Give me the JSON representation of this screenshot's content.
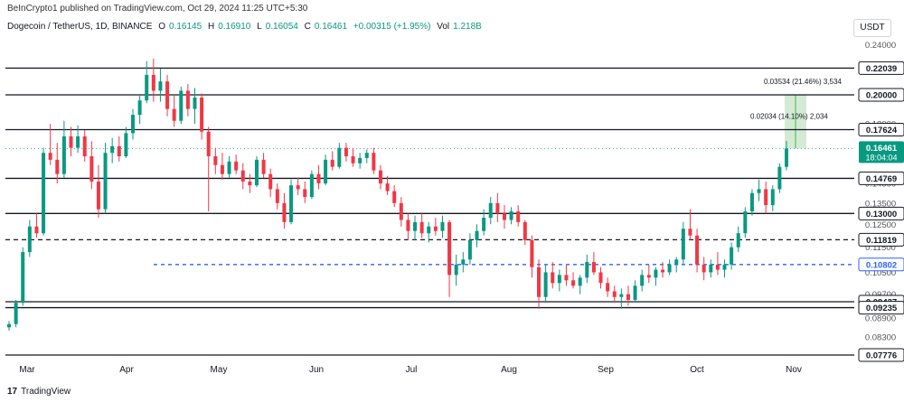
{
  "header": {
    "published_by": "BeInCrypto1 published on TradingView.com, Oct 29, 2024 11:25 UTC+5:30",
    "symbol": "Dogecoin / TetherUS, 1D, BINANCE",
    "ohlc": {
      "o_label": "O",
      "o_value": "0.16145",
      "h_label": "H",
      "h_value": "0.16910",
      "l_label": "L",
      "l_value": "0.16054",
      "c_label": "C",
      "c_value": "0.16461",
      "change": "+0.00315 (+1.95%)",
      "vol_label": "Vol",
      "vol_value": "1.218B"
    },
    "currency": "USDT"
  },
  "footer": {
    "logo_mark": "17",
    "logo_text": "TradingView"
  },
  "colors": {
    "up": "#089981",
    "down": "#f23645",
    "level_line": "#131722",
    "dashed_blue": "#2962ff",
    "projection_fill": "#c8e6c9",
    "price_label_bg": "#131722",
    "current_price_bg": "#089981",
    "current_price_line": "#089981"
  },
  "chart_data": {
    "type": "candlestick",
    "x_axis": {
      "labels": [
        "Mar",
        "Apr",
        "May",
        "Jun",
        "Jul",
        "Aug",
        "Sep",
        "Oct",
        "Nov"
      ]
    },
    "y_axis": {
      "scale": "log",
      "range": [
        0.0765,
        0.2475
      ],
      "tick_labels": [
        "0.24000",
        "0.18000",
        "0.14500",
        "0.13500",
        "0.12500",
        "0.11500",
        "0.10500",
        "0.09700",
        "0.08900",
        "0.08300"
      ]
    },
    "horizontal_levels": [
      {
        "value": 0.22039,
        "label": "0.22039",
        "style": "solid"
      },
      {
        "value": 0.2,
        "label": "0.20000",
        "style": "solid"
      },
      {
        "value": 0.17624,
        "label": "0.17624",
        "style": "solid"
      },
      {
        "value": 0.14769,
        "label": "0.14769",
        "style": "solid"
      },
      {
        "value": 0.13,
        "label": "0.13000",
        "style": "solid"
      },
      {
        "value": 0.11819,
        "label": "0.11819",
        "style": "dashed"
      },
      {
        "value": 0.10802,
        "label": "0.10802",
        "style": "dashed-blue"
      },
      {
        "value": 0.09437,
        "label": "0.09437",
        "style": "solid"
      },
      {
        "value": 0.09235,
        "label": "0.09235",
        "style": "solid"
      },
      {
        "value": 0.07776,
        "label": "0.07776",
        "style": "solid"
      }
    ],
    "current_price": {
      "value": 0.16461,
      "label": "0.16461",
      "countdown": "18:04:04"
    },
    "projection": {
      "from": 0.16461,
      "to": 0.2
    },
    "annotations": [
      {
        "text": "0.03534 (21.46%) 3,534",
        "value": 0.2
      },
      {
        "text": "0.02034 (14.10%) 2,034",
        "value": 0.17624
      }
    ],
    "series": [
      {
        "date_index": 0,
        "open": 0.086,
        "high": 0.088,
        "low": 0.085,
        "close": 0.087
      },
      {
        "date_index": 2,
        "open": 0.087,
        "high": 0.095,
        "low": 0.086,
        "close": 0.094
      },
      {
        "date_index": 4,
        "open": 0.094,
        "high": 0.115,
        "low": 0.093,
        "close": 0.113
      },
      {
        "date_index": 6,
        "open": 0.113,
        "high": 0.127,
        "low": 0.111,
        "close": 0.124
      },
      {
        "date_index": 8,
        "open": 0.124,
        "high": 0.13,
        "low": 0.119,
        "close": 0.121
      },
      {
        "date_index": 10,
        "open": 0.121,
        "high": 0.165,
        "low": 0.12,
        "close": 0.162
      },
      {
        "date_index": 12,
        "open": 0.162,
        "high": 0.18,
        "low": 0.155,
        "close": 0.158
      },
      {
        "date_index": 14,
        "open": 0.158,
        "high": 0.168,
        "low": 0.145,
        "close": 0.15
      },
      {
        "date_index": 16,
        "open": 0.15,
        "high": 0.182,
        "low": 0.148,
        "close": 0.172
      },
      {
        "date_index": 18,
        "open": 0.172,
        "high": 0.178,
        "low": 0.16,
        "close": 0.165
      },
      {
        "date_index": 20,
        "open": 0.165,
        "high": 0.179,
        "low": 0.162,
        "close": 0.172
      },
      {
        "date_index": 22,
        "open": 0.172,
        "high": 0.176,
        "low": 0.157,
        "close": 0.16
      },
      {
        "date_index": 24,
        "open": 0.16,
        "high": 0.169,
        "low": 0.142,
        "close": 0.146
      },
      {
        "date_index": 26,
        "open": 0.146,
        "high": 0.155,
        "low": 0.128,
        "close": 0.132
      },
      {
        "date_index": 28,
        "open": 0.132,
        "high": 0.168,
        "low": 0.13,
        "close": 0.162
      },
      {
        "date_index": 30,
        "open": 0.162,
        "high": 0.171,
        "low": 0.156,
        "close": 0.166
      },
      {
        "date_index": 32,
        "open": 0.166,
        "high": 0.172,
        "low": 0.157,
        "close": 0.16
      },
      {
        "date_index": 34,
        "open": 0.16,
        "high": 0.178,
        "low": 0.159,
        "close": 0.174
      },
      {
        "date_index": 36,
        "open": 0.174,
        "high": 0.19,
        "low": 0.17,
        "close": 0.186
      },
      {
        "date_index": 38,
        "open": 0.186,
        "high": 0.2,
        "low": 0.18,
        "close": 0.196
      },
      {
        "date_index": 40,
        "open": 0.196,
        "high": 0.226,
        "low": 0.194,
        "close": 0.215
      },
      {
        "date_index": 42,
        "open": 0.215,
        "high": 0.228,
        "low": 0.195,
        "close": 0.203
      },
      {
        "date_index": 44,
        "open": 0.203,
        "high": 0.22,
        "low": 0.195,
        "close": 0.21
      },
      {
        "date_index": 46,
        "open": 0.21,
        "high": 0.215,
        "low": 0.185,
        "close": 0.19
      },
      {
        "date_index": 48,
        "open": 0.19,
        "high": 0.2,
        "low": 0.178,
        "close": 0.182
      },
      {
        "date_index": 50,
        "open": 0.182,
        "high": 0.206,
        "low": 0.18,
        "close": 0.203
      },
      {
        "date_index": 52,
        "open": 0.203,
        "high": 0.208,
        "low": 0.185,
        "close": 0.19
      },
      {
        "date_index": 54,
        "open": 0.19,
        "high": 0.205,
        "low": 0.18,
        "close": 0.198
      },
      {
        "date_index": 56,
        "open": 0.198,
        "high": 0.201,
        "low": 0.17,
        "close": 0.175
      },
      {
        "date_index": 58,
        "open": 0.175,
        "high": 0.178,
        "low": 0.131,
        "close": 0.16
      },
      {
        "date_index": 60,
        "open": 0.16,
        "high": 0.165,
        "low": 0.15,
        "close": 0.155
      },
      {
        "date_index": 62,
        "open": 0.155,
        "high": 0.162,
        "low": 0.147,
        "close": 0.15
      },
      {
        "date_index": 64,
        "open": 0.15,
        "high": 0.16,
        "low": 0.148,
        "close": 0.157
      },
      {
        "date_index": 66,
        "open": 0.157,
        "high": 0.161,
        "low": 0.15,
        "close": 0.152
      },
      {
        "date_index": 68,
        "open": 0.152,
        "high": 0.156,
        "low": 0.142,
        "close": 0.146
      },
      {
        "date_index": 70,
        "open": 0.146,
        "high": 0.15,
        "low": 0.14,
        "close": 0.144
      },
      {
        "date_index": 72,
        "open": 0.144,
        "high": 0.16,
        "low": 0.143,
        "close": 0.158
      },
      {
        "date_index": 74,
        "open": 0.158,
        "high": 0.162,
        "low": 0.148,
        "close": 0.15
      },
      {
        "date_index": 76,
        "open": 0.15,
        "high": 0.153,
        "low": 0.138,
        "close": 0.142
      },
      {
        "date_index": 78,
        "open": 0.142,
        "high": 0.145,
        "low": 0.132,
        "close": 0.135
      },
      {
        "date_index": 80,
        "open": 0.135,
        "high": 0.14,
        "low": 0.123,
        "close": 0.126
      },
      {
        "date_index": 82,
        "open": 0.126,
        "high": 0.147,
        "low": 0.125,
        "close": 0.144
      },
      {
        "date_index": 84,
        "open": 0.144,
        "high": 0.148,
        "low": 0.139,
        "close": 0.142
      },
      {
        "date_index": 86,
        "open": 0.142,
        "high": 0.146,
        "low": 0.135,
        "close": 0.138
      },
      {
        "date_index": 88,
        "open": 0.138,
        "high": 0.152,
        "low": 0.137,
        "close": 0.15
      },
      {
        "date_index": 90,
        "open": 0.15,
        "high": 0.155,
        "low": 0.142,
        "close": 0.145
      },
      {
        "date_index": 92,
        "open": 0.145,
        "high": 0.161,
        "low": 0.144,
        "close": 0.158
      },
      {
        "date_index": 94,
        "open": 0.158,
        "high": 0.163,
        "low": 0.152,
        "close": 0.154
      },
      {
        "date_index": 96,
        "open": 0.154,
        "high": 0.168,
        "low": 0.153,
        "close": 0.165
      },
      {
        "date_index": 98,
        "open": 0.165,
        "high": 0.168,
        "low": 0.157,
        "close": 0.16
      },
      {
        "date_index": 100,
        "open": 0.16,
        "high": 0.165,
        "low": 0.154,
        "close": 0.156
      },
      {
        "date_index": 102,
        "open": 0.156,
        "high": 0.162,
        "low": 0.153,
        "close": 0.159
      },
      {
        "date_index": 104,
        "open": 0.159,
        "high": 0.164,
        "low": 0.156,
        "close": 0.162
      },
      {
        "date_index": 106,
        "open": 0.162,
        "high": 0.165,
        "low": 0.15,
        "close": 0.152
      },
      {
        "date_index": 108,
        "open": 0.152,
        "high": 0.155,
        "low": 0.142,
        "close": 0.145
      },
      {
        "date_index": 110,
        "open": 0.145,
        "high": 0.149,
        "low": 0.139,
        "close": 0.141
      },
      {
        "date_index": 112,
        "open": 0.141,
        "high": 0.144,
        "low": 0.133,
        "close": 0.135
      },
      {
        "date_index": 114,
        "open": 0.135,
        "high": 0.138,
        "low": 0.124,
        "close": 0.127
      },
      {
        "date_index": 116,
        "open": 0.127,
        "high": 0.13,
        "low": 0.118,
        "close": 0.122
      },
      {
        "date_index": 118,
        "open": 0.122,
        "high": 0.129,
        "low": 0.118,
        "close": 0.126
      },
      {
        "date_index": 120,
        "open": 0.126,
        "high": 0.13,
        "low": 0.119,
        "close": 0.121
      },
      {
        "date_index": 122,
        "open": 0.121,
        "high": 0.126,
        "low": 0.117,
        "close": 0.124
      },
      {
        "date_index": 124,
        "open": 0.124,
        "high": 0.128,
        "low": 0.12,
        "close": 0.122
      },
      {
        "date_index": 126,
        "open": 0.122,
        "high": 0.129,
        "low": 0.119,
        "close": 0.126
      },
      {
        "date_index": 128,
        "open": 0.126,
        "high": 0.127,
        "low": 0.096,
        "close": 0.104
      },
      {
        "date_index": 130,
        "open": 0.104,
        "high": 0.112,
        "low": 0.1,
        "close": 0.108
      },
      {
        "date_index": 132,
        "open": 0.108,
        "high": 0.113,
        "low": 0.105,
        "close": 0.11
      },
      {
        "date_index": 134,
        "open": 0.11,
        "high": 0.121,
        "low": 0.108,
        "close": 0.118
      },
      {
        "date_index": 136,
        "open": 0.118,
        "high": 0.125,
        "low": 0.115,
        "close": 0.122
      },
      {
        "date_index": 138,
        "open": 0.122,
        "high": 0.132,
        "low": 0.12,
        "close": 0.128
      },
      {
        "date_index": 140,
        "open": 0.128,
        "high": 0.138,
        "low": 0.125,
        "close": 0.135
      },
      {
        "date_index": 142,
        "open": 0.135,
        "high": 0.14,
        "low": 0.126,
        "close": 0.13
      },
      {
        "date_index": 144,
        "open": 0.13,
        "high": 0.134,
        "low": 0.123,
        "close": 0.127
      },
      {
        "date_index": 146,
        "open": 0.127,
        "high": 0.133,
        "low": 0.125,
        "close": 0.131
      },
      {
        "date_index": 148,
        "open": 0.131,
        "high": 0.134,
        "low": 0.124,
        "close": 0.126
      },
      {
        "date_index": 150,
        "open": 0.126,
        "high": 0.127,
        "low": 0.116,
        "close": 0.118
      },
      {
        "date_index": 152,
        "open": 0.118,
        "high": 0.12,
        "low": 0.103,
        "close": 0.107
      },
      {
        "date_index": 154,
        "open": 0.107,
        "high": 0.11,
        "low": 0.092,
        "close": 0.096
      },
      {
        "date_index": 156,
        "open": 0.096,
        "high": 0.108,
        "low": 0.094,
        "close": 0.105
      },
      {
        "date_index": 158,
        "open": 0.105,
        "high": 0.109,
        "low": 0.099,
        "close": 0.101
      },
      {
        "date_index": 160,
        "open": 0.101,
        "high": 0.106,
        "low": 0.098,
        "close": 0.104
      },
      {
        "date_index": 162,
        "open": 0.104,
        "high": 0.108,
        "low": 0.1,
        "close": 0.102
      },
      {
        "date_index": 164,
        "open": 0.102,
        "high": 0.105,
        "low": 0.099,
        "close": 0.1
      },
      {
        "date_index": 166,
        "open": 0.1,
        "high": 0.104,
        "low": 0.097,
        "close": 0.103
      },
      {
        "date_index": 168,
        "open": 0.103,
        "high": 0.112,
        "low": 0.101,
        "close": 0.109
      },
      {
        "date_index": 170,
        "open": 0.109,
        "high": 0.113,
        "low": 0.104,
        "close": 0.105
      },
      {
        "date_index": 172,
        "open": 0.105,
        "high": 0.107,
        "low": 0.099,
        "close": 0.101
      },
      {
        "date_index": 174,
        "open": 0.101,
        "high": 0.103,
        "low": 0.096,
        "close": 0.098
      },
      {
        "date_index": 176,
        "open": 0.098,
        "high": 0.1,
        "low": 0.094,
        "close": 0.096
      },
      {
        "date_index": 178,
        "open": 0.096,
        "high": 0.099,
        "low": 0.092,
        "close": 0.097
      },
      {
        "date_index": 180,
        "open": 0.097,
        "high": 0.1,
        "low": 0.093,
        "close": 0.095
      },
      {
        "date_index": 182,
        "open": 0.095,
        "high": 0.102,
        "low": 0.094,
        "close": 0.1
      },
      {
        "date_index": 184,
        "open": 0.1,
        "high": 0.106,
        "low": 0.098,
        "close": 0.104
      },
      {
        "date_index": 186,
        "open": 0.104,
        "high": 0.108,
        "low": 0.101,
        "close": 0.103
      },
      {
        "date_index": 188,
        "open": 0.103,
        "high": 0.107,
        "low": 0.1,
        "close": 0.106
      },
      {
        "date_index": 190,
        "open": 0.106,
        "high": 0.109,
        "low": 0.103,
        "close": 0.105
      },
      {
        "date_index": 192,
        "open": 0.105,
        "high": 0.11,
        "low": 0.104,
        "close": 0.108
      },
      {
        "date_index": 194,
        "open": 0.108,
        "high": 0.111,
        "low": 0.105,
        "close": 0.11
      },
      {
        "date_index": 196,
        "open": 0.11,
        "high": 0.126,
        "low": 0.108,
        "close": 0.123
      },
      {
        "date_index": 198,
        "open": 0.123,
        "high": 0.132,
        "low": 0.118,
        "close": 0.12
      },
      {
        "date_index": 200,
        "open": 0.12,
        "high": 0.123,
        "low": 0.105,
        "close": 0.108
      },
      {
        "date_index": 202,
        "open": 0.108,
        "high": 0.111,
        "low": 0.102,
        "close": 0.105
      },
      {
        "date_index": 204,
        "open": 0.105,
        "high": 0.11,
        "low": 0.103,
        "close": 0.108
      },
      {
        "date_index": 206,
        "open": 0.108,
        "high": 0.113,
        "low": 0.104,
        "close": 0.106
      },
      {
        "date_index": 208,
        "open": 0.106,
        "high": 0.11,
        "low": 0.103,
        "close": 0.108
      },
      {
        "date_index": 210,
        "open": 0.108,
        "high": 0.117,
        "low": 0.106,
        "close": 0.115
      },
      {
        "date_index": 212,
        "open": 0.115,
        "high": 0.124,
        "low": 0.113,
        "close": 0.121
      },
      {
        "date_index": 214,
        "open": 0.121,
        "high": 0.133,
        "low": 0.119,
        "close": 0.131
      },
      {
        "date_index": 216,
        "open": 0.131,
        "high": 0.142,
        "low": 0.129,
        "close": 0.14
      },
      {
        "date_index": 218,
        "open": 0.14,
        "high": 0.147,
        "low": 0.136,
        "close": 0.142
      },
      {
        "date_index": 220,
        "open": 0.142,
        "high": 0.146,
        "low": 0.13,
        "close": 0.134
      },
      {
        "date_index": 222,
        "open": 0.134,
        "high": 0.144,
        "low": 0.131,
        "close": 0.142
      },
      {
        "date_index": 224,
        "open": 0.142,
        "high": 0.156,
        "low": 0.14,
        "close": 0.154
      },
      {
        "date_index": 226,
        "open": 0.154,
        "high": 0.1691,
        "low": 0.152,
        "close": 0.1646
      }
    ]
  }
}
